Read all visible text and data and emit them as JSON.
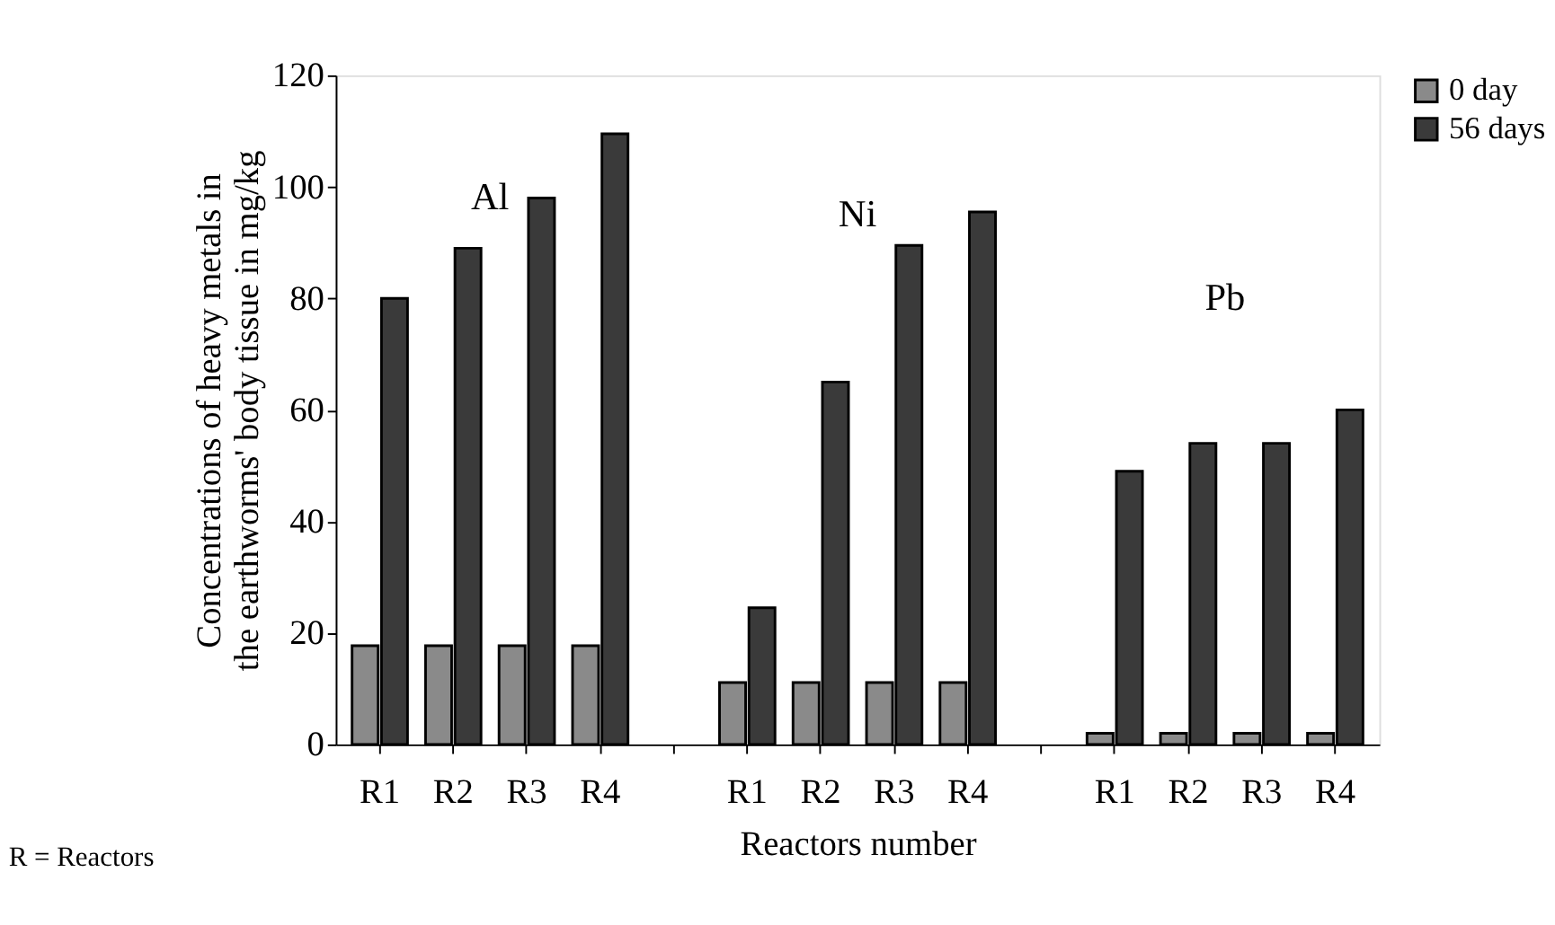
{
  "chart_data": {
    "type": "bar",
    "ylabel": "Concentrations of heavy metals in the earthworms' body tissue in mg/kg",
    "xlabel": "Reactors number",
    "categories": [
      "R1",
      "R2",
      "R3",
      "R4",
      null,
      "R1",
      "R2",
      "R3",
      "R4",
      null,
      "R1",
      "R2",
      "R3",
      "R4"
    ],
    "series": [
      {
        "name": "0 day",
        "color": "#8a8a8a",
        "values": [
          17.7,
          17.7,
          17.7,
          17.7,
          null,
          11.1,
          11.1,
          11.1,
          11.1,
          null,
          2,
          2,
          2,
          2
        ]
      },
      {
        "name": "56 days",
        "color": "#3a3a3a",
        "values": [
          80,
          89,
          98,
          109.5,
          null,
          24.5,
          65,
          89.5,
          95.5,
          null,
          49,
          54,
          54,
          60
        ]
      }
    ],
    "ylim": [
      0,
      120
    ],
    "yticks": [
      0,
      20,
      40,
      60,
      80,
      100,
      120
    ],
    "grid": false,
    "legend": "right",
    "annotations": [
      "Al",
      "Ni",
      "Pb",
      "R = Reactors"
    ]
  }
}
